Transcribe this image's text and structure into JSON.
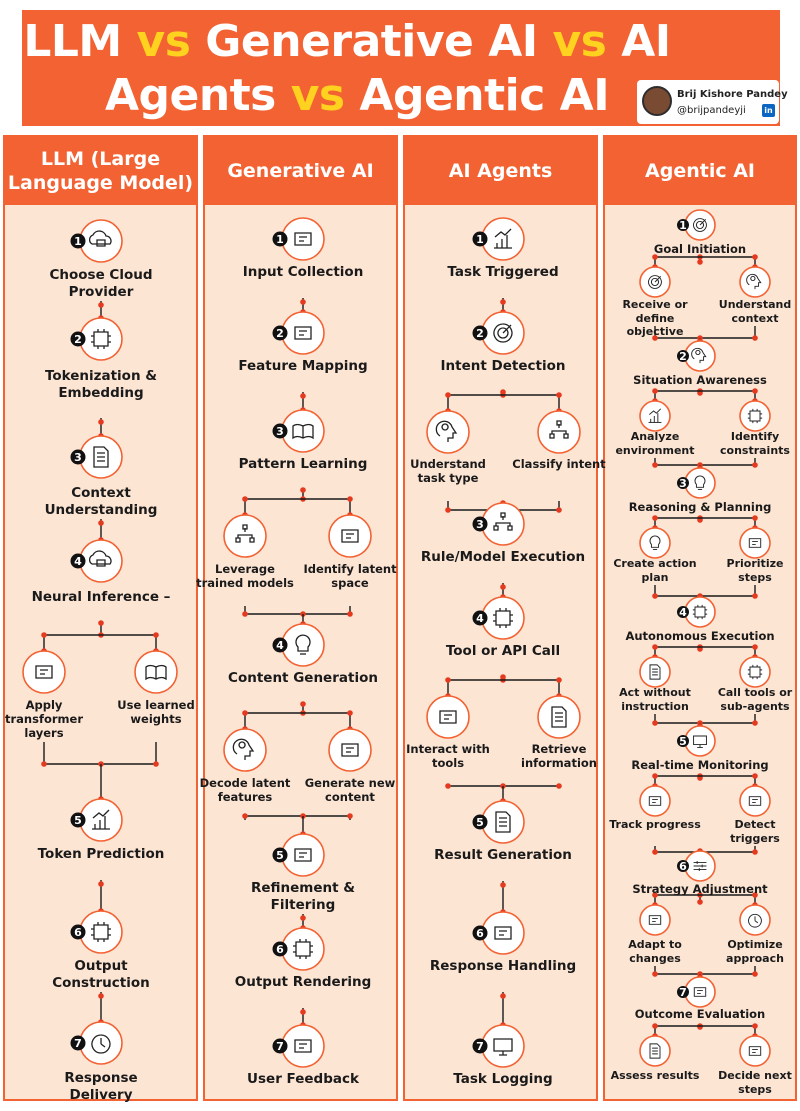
{
  "header": {
    "line1": {
      "a": "LLM",
      "vs1": "vs",
      "b": "Generative AI",
      "vs2": "vs",
      "c": "AI"
    },
    "line2": {
      "a": "Agents",
      "vs": "vs",
      "b": "Agentic AI"
    },
    "author": {
      "name": "Brij Kishore Pandey",
      "handle": "@brijpandeyji",
      "network_badge": "in"
    }
  },
  "colors": {
    "accent": "#f26232",
    "highlight": "#ffd21f",
    "panel_bg": "#fde5d4",
    "dot": "#e53a1f"
  },
  "columns": {
    "llm": {
      "title": "LLM (Large Language Model)",
      "steps": [
        {
          "num": "1",
          "label": "Choose Cloud Provider",
          "icon": "cloud-database-icon"
        },
        {
          "num": "2",
          "label": "Tokenization & Embedding",
          "icon": "chip-code-icon"
        },
        {
          "num": "3",
          "label": "Context Understanding",
          "icon": "document-icon"
        },
        {
          "num": "4",
          "label": "Neural Inference –",
          "icon": "cloud-chip-icon",
          "branches": [
            {
              "label": "Apply transformer layers",
              "icon": "transformer-icon"
            },
            {
              "label": "Use learned weights",
              "icon": "book-pencil-icon"
            }
          ]
        },
        {
          "num": "5",
          "label": "Token Prediction",
          "icon": "chart-up-icon"
        },
        {
          "num": "6",
          "label": "Output Construction",
          "icon": "gear-arrow-icon"
        },
        {
          "num": "7",
          "label": "Response Delivery",
          "icon": "stopwatch-icon"
        }
      ]
    },
    "generative": {
      "title": "Generative AI",
      "steps": [
        {
          "num": "1",
          "label": "Input Collection",
          "icon": "input-icon"
        },
        {
          "num": "2",
          "label": "Feature Mapping",
          "icon": "mapping-icon"
        },
        {
          "num": "3",
          "label": "Pattern Learning",
          "icon": "open-book-icon",
          "branches": [
            {
              "label": "Leverage trained models",
              "icon": "network-icon"
            },
            {
              "label": "Identify latent space",
              "icon": "magnifier-warning-icon"
            }
          ]
        },
        {
          "num": "4",
          "label": "Content Generation",
          "icon": "lightbulb-icon",
          "branches": [
            {
              "label": "Decode latent features",
              "icon": "brain-icon"
            },
            {
              "label": "Generate new content",
              "icon": "magnet-icon"
            }
          ]
        },
        {
          "num": "5",
          "label": "Refinement & Filtering",
          "icon": "filter-search-icon"
        },
        {
          "num": "6",
          "label": "Output Rendering",
          "icon": "gear-arrow-icon"
        },
        {
          "num": "7",
          "label": "User Feedback",
          "icon": "feedback-icon"
        }
      ]
    },
    "agents": {
      "title": "AI Agents",
      "steps": [
        {
          "num": "1",
          "label": "Task Triggered",
          "icon": "bar-chart-icon"
        },
        {
          "num": "2",
          "label": "Intent Detection",
          "icon": "target-icon",
          "branches": [
            {
              "label": "Understand task type",
              "icon": "head-search-icon"
            },
            {
              "label": "Classify intent",
              "icon": "hierarchy-icon"
            }
          ]
        },
        {
          "num": "3",
          "label": "Rule/Model Execution",
          "icon": "flow-icon"
        },
        {
          "num": "4",
          "label": "Tool or API Call",
          "icon": "api-gear-icon",
          "branches": [
            {
              "label": "Interact with tools",
              "icon": "hand-tools-icon"
            },
            {
              "label": "Retrieve information",
              "icon": "search-doc-icon"
            }
          ]
        },
        {
          "num": "5",
          "label": "Result Generation",
          "icon": "document-gear-icon"
        },
        {
          "num": "6",
          "label": "Response Handling",
          "icon": "support-agent-icon"
        },
        {
          "num": "7",
          "label": "Task Logging",
          "icon": "laptop-icon"
        }
      ]
    },
    "agentic": {
      "title": "Agentic AI",
      "steps": [
        {
          "num": "1",
          "label": "Goal Initiation",
          "icon": "target-icon",
          "branches": [
            {
              "label": "Receive or define objective",
              "icon": "target-icon"
            },
            {
              "label": "Understand context",
              "icon": "head-search-icon"
            }
          ]
        },
        {
          "num": "2",
          "label": "Situation Awareness",
          "icon": "eye-brain-icon",
          "branches": [
            {
              "label": "Analyze environment",
              "icon": "chart-search-icon"
            },
            {
              "label": "Identify constraints",
              "icon": "gear-search-icon"
            }
          ]
        },
        {
          "num": "3",
          "label": "Reasoning & Planning",
          "icon": "lightbulb-icon",
          "branches": [
            {
              "label": "Create action plan",
              "icon": "lightbulb-gear-icon"
            },
            {
              "label": "Prioritize steps",
              "icon": "list-icon"
            }
          ]
        },
        {
          "num": "4",
          "label": "Autonomous Execution",
          "icon": "gear-icon",
          "branches": [
            {
              "label": "Act without instruction",
              "icon": "clipboard-icon"
            },
            {
              "label": "Call tools or sub-agents",
              "icon": "gear-icon"
            }
          ]
        },
        {
          "num": "5",
          "label": "Real-time Monitoring",
          "icon": "monitor-icon",
          "branches": [
            {
              "label": "Track progress",
              "icon": "person-steps-icon"
            },
            {
              "label": "Detect triggers",
              "icon": "alert-search-icon"
            }
          ]
        },
        {
          "num": "6",
          "label": "Strategy Adjustment",
          "icon": "sliders-icon",
          "branches": [
            {
              "label": "Adapt to changes",
              "icon": "arrows-icon"
            },
            {
              "label": "Optimize approach",
              "icon": "cycle-icon"
            }
          ]
        },
        {
          "num": "7",
          "label": "Outcome Evaluation",
          "icon": "evaluation-icon",
          "branches": [
            {
              "label": "Assess results",
              "icon": "report-icon"
            },
            {
              "label": "Decide next steps",
              "icon": "signpost-icon"
            }
          ]
        }
      ]
    }
  }
}
